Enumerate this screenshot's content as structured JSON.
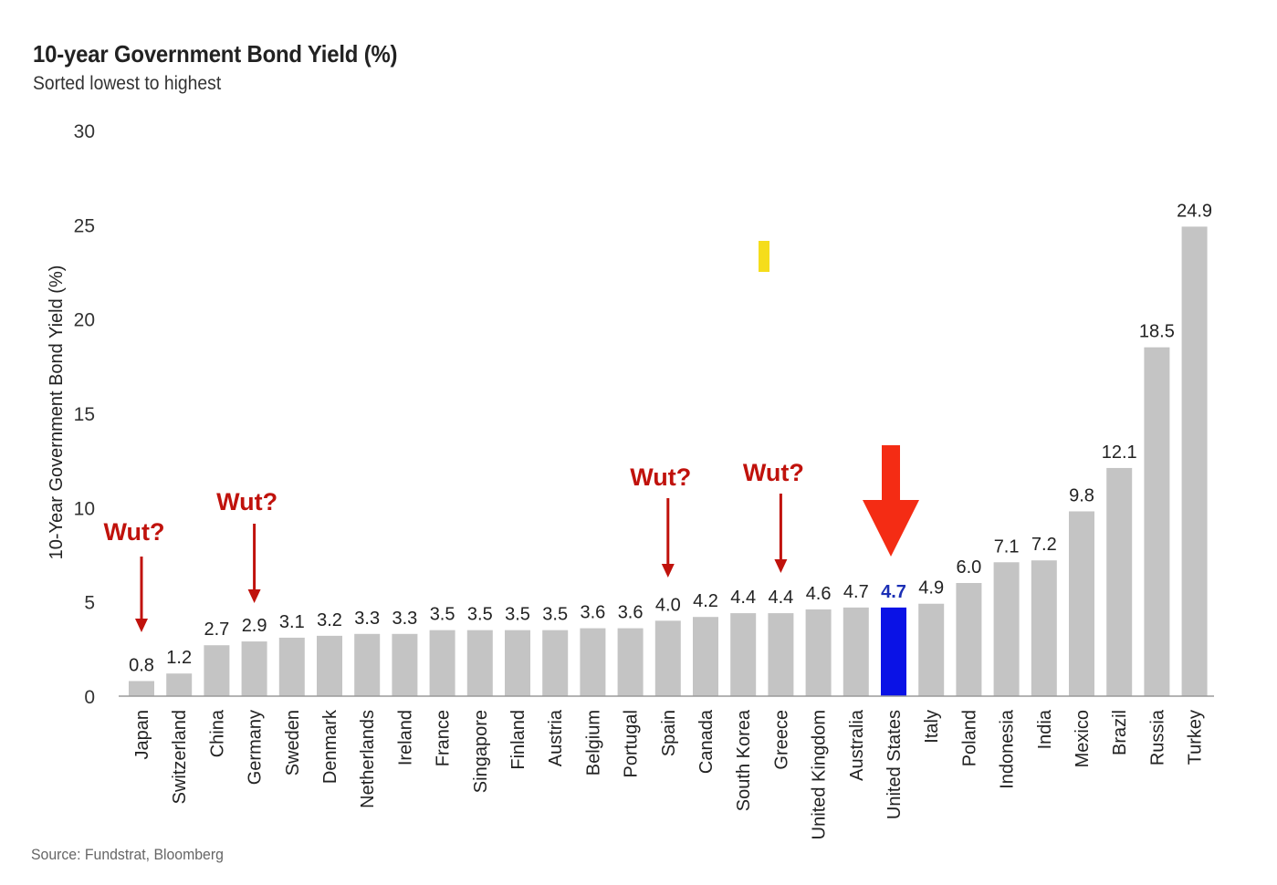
{
  "header": {
    "title": "10-year Government Bond Yield (%)",
    "subtitle": "Sorted lowest to highest"
  },
  "footer": {
    "source": "Source: Fundstrat, Bloomberg"
  },
  "colors": {
    "bar": "#c4c4c4",
    "highlight": "#0a12e6",
    "annotation": "#c0120c",
    "big_arrow": "#f42c14",
    "marker": "#f5dd1b"
  },
  "annotations": [
    {
      "text": "Wut?",
      "target": "Japan"
    },
    {
      "text": "Wut?",
      "target": "Germany"
    },
    {
      "text": "Wut?",
      "target": "Spain"
    },
    {
      "text": "Wut?",
      "target": "Greece"
    }
  ],
  "highlight_arrow_target": "United States",
  "chart_data": {
    "type": "bar",
    "title": "10-year Government Bond Yield (%)",
    "subtitle": "Sorted lowest to highest",
    "xlabel": "",
    "ylabel": "10-Year Government Bond Yield (%)",
    "ylim": [
      0,
      30
    ],
    "yticks": [
      0,
      5,
      10,
      15,
      20,
      25,
      30
    ],
    "categories": [
      "Japan",
      "Switzerland",
      "China",
      "Germany",
      "Sweden",
      "Denmark",
      "Netherlands",
      "Ireland",
      "France",
      "Singapore",
      "Finland",
      "Austria",
      "Belgium",
      "Portugal",
      "Spain",
      "Canada",
      "South Korea",
      "Greece",
      "United Kingdom",
      "Australia",
      "United States",
      "Italy",
      "Poland",
      "Indonesia",
      "India",
      "Mexico",
      "Brazil",
      "Russia",
      "Turkey"
    ],
    "values": [
      0.8,
      1.2,
      2.7,
      2.9,
      3.1,
      3.2,
      3.3,
      3.3,
      3.5,
      3.5,
      3.5,
      3.5,
      3.6,
      3.6,
      4.0,
      4.2,
      4.4,
      4.4,
      4.6,
      4.7,
      4.7,
      4.9,
      6.0,
      7.1,
      7.2,
      9.8,
      12.1,
      18.5,
      24.9
    ],
    "labels": [
      "0.8",
      "1.2",
      "2.7",
      "2.9",
      "3.1",
      "3.2",
      "3.3",
      "3.3",
      "3.5",
      "3.5",
      "3.5",
      "3.5",
      "3.6",
      "3.6",
      "4.0",
      "4.2",
      "4.4",
      "4.4",
      "4.6",
      "4.7",
      "4.7",
      "4.9",
      "6.0",
      "7.1",
      "7.2",
      "9.8",
      "12.1",
      "18.5",
      "24.9"
    ],
    "highlight": "United States",
    "grid": false,
    "legend": "none"
  }
}
